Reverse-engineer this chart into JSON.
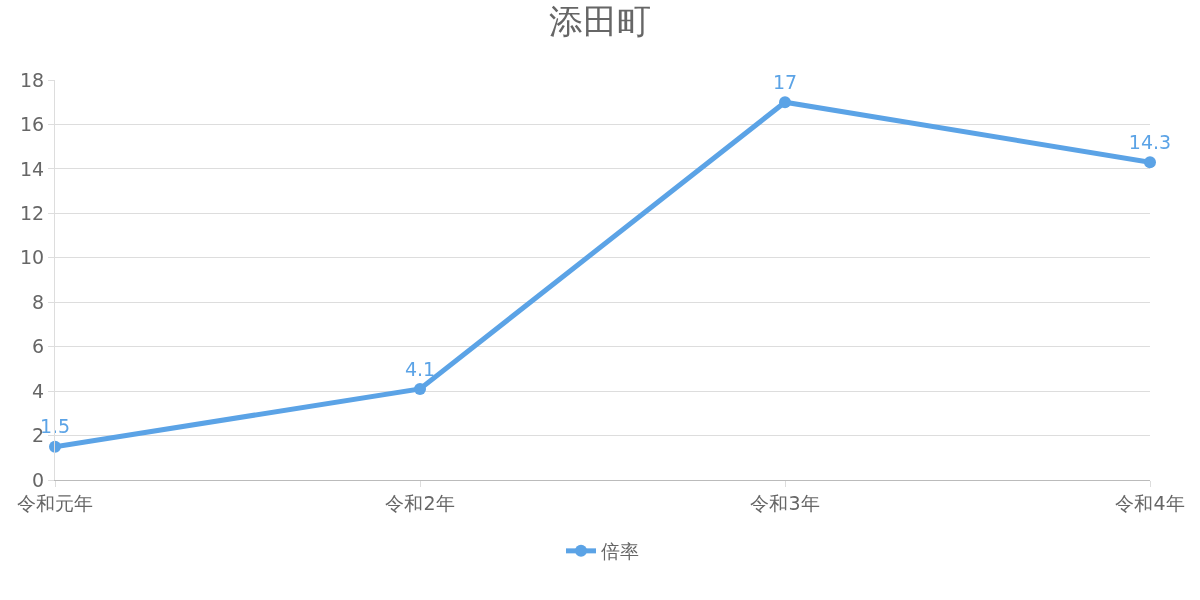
{
  "chart_data": {
    "type": "line",
    "title": "添田町",
    "categories": [
      "令和元年",
      "令和2年",
      "令和3年",
      "令和4年"
    ],
    "series": [
      {
        "name": "倍率",
        "color": "#5ba3e6",
        "values": [
          1.5,
          4.1,
          17,
          14.3
        ]
      }
    ],
    "ylim": [
      0,
      18
    ],
    "yticks": [
      0,
      2,
      4,
      6,
      8,
      10,
      12,
      14,
      16,
      18
    ],
    "grid": "y",
    "legend": "bottom",
    "marker": "circle",
    "line_style": "solid",
    "data_labels": true
  }
}
